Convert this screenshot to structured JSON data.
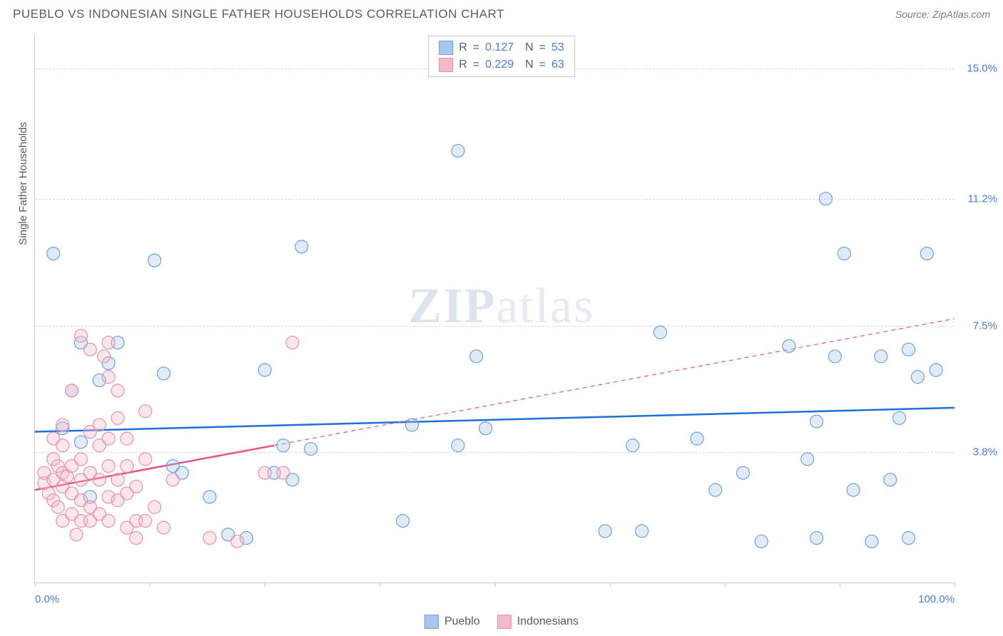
{
  "title": "PUEBLO VS INDONESIAN SINGLE FATHER HOUSEHOLDS CORRELATION CHART",
  "source_label": "Source: ZipAtlas.com",
  "watermark_zip": "ZIP",
  "watermark_atlas": "atlas",
  "y_axis_title": "Single Father Households",
  "x_min_label": "0.0%",
  "x_max_label": "100.0%",
  "stats": {
    "r_label": "R",
    "n_label": "N",
    "eq": "=",
    "series1": {
      "r": "0.127",
      "n": "53"
    },
    "series2": {
      "r": "0.229",
      "n": "63"
    }
  },
  "legend": {
    "series1_name": "Pueblo",
    "series2_name": "Indonesians"
  },
  "chart": {
    "type": "scatter",
    "xlim": [
      0,
      100
    ],
    "ylim": [
      0,
      16
    ],
    "y_gridlines": [
      {
        "value": 15.0,
        "label": "15.0%"
      },
      {
        "value": 11.2,
        "label": "11.2%"
      },
      {
        "value": 7.5,
        "label": "7.5%"
      },
      {
        "value": 3.8,
        "label": "3.8%"
      }
    ],
    "x_ticks": [
      0,
      12.5,
      25,
      37.5,
      50,
      62.5,
      75,
      87.5,
      100
    ],
    "marker_radius": 9,
    "marker_stroke_width": 1.2,
    "marker_fill_opacity": 0.35,
    "series": [
      {
        "name": "Pueblo",
        "color_fill": "#a9c6ec",
        "color_stroke": "#6fa0dd",
        "trend_color": "#1e6fd9",
        "trend_width": 2.5,
        "trend_dash": "",
        "trend": {
          "x1": 0,
          "y1": 4.4,
          "x2": 100,
          "y2": 5.1
        },
        "points": [
          [
            2,
            9.6
          ],
          [
            3,
            4.5
          ],
          [
            4,
            5.6
          ],
          [
            5,
            4.1
          ],
          [
            5,
            7.0
          ],
          [
            6,
            2.5
          ],
          [
            7,
            5.9
          ],
          [
            8,
            6.4
          ],
          [
            9,
            7.0
          ],
          [
            13,
            9.4
          ],
          [
            14,
            6.1
          ],
          [
            15,
            3.4
          ],
          [
            16,
            3.2
          ],
          [
            19,
            2.5
          ],
          [
            21,
            1.4
          ],
          [
            23,
            1.3
          ],
          [
            25,
            6.2
          ],
          [
            26,
            3.2
          ],
          [
            27,
            4.0
          ],
          [
            28,
            3.0
          ],
          [
            29,
            9.8
          ],
          [
            30,
            3.9
          ],
          [
            40,
            1.8
          ],
          [
            41,
            4.6
          ],
          [
            46,
            4.0
          ],
          [
            46,
            12.6
          ],
          [
            48,
            6.6
          ],
          [
            49,
            4.5
          ],
          [
            62,
            1.5
          ],
          [
            65,
            4.0
          ],
          [
            66,
            1.5
          ],
          [
            68,
            7.3
          ],
          [
            72,
            4.2
          ],
          [
            74,
            2.7
          ],
          [
            77,
            3.2
          ],
          [
            82,
            6.9
          ],
          [
            84,
            3.6
          ],
          [
            85,
            1.3
          ],
          [
            85,
            4.7
          ],
          [
            86,
            11.2
          ],
          [
            87,
            6.6
          ],
          [
            88,
            9.6
          ],
          [
            89,
            2.7
          ],
          [
            91,
            1.2
          ],
          [
            92,
            6.6
          ],
          [
            93,
            3.0
          ],
          [
            94,
            4.8
          ],
          [
            95,
            6.8
          ],
          [
            96,
            6.0
          ],
          [
            97,
            9.6
          ],
          [
            98,
            6.2
          ],
          [
            95,
            1.3
          ],
          [
            79,
            1.2
          ]
        ]
      },
      {
        "name": "Indonesians",
        "color_fill": "#f3b9c7",
        "color_stroke": "#e892a8",
        "trend_color": "#e3567f",
        "trend_width": 2.5,
        "trend_solid_until_x": 26,
        "trend_dash": "6 5",
        "trend": {
          "x1": 0,
          "y1": 2.7,
          "x2": 100,
          "y2": 7.7
        },
        "points": [
          [
            1,
            2.9
          ],
          [
            1,
            3.2
          ],
          [
            1.5,
            2.6
          ],
          [
            2,
            2.4
          ],
          [
            2,
            3.0
          ],
          [
            2,
            3.6
          ],
          [
            2,
            4.2
          ],
          [
            2.5,
            2.2
          ],
          [
            2.5,
            3.4
          ],
          [
            3,
            1.8
          ],
          [
            3,
            2.8
          ],
          [
            3,
            3.2
          ],
          [
            3,
            4.0
          ],
          [
            3,
            4.6
          ],
          [
            3.5,
            3.1
          ],
          [
            4,
            2.0
          ],
          [
            4,
            2.6
          ],
          [
            4,
            3.4
          ],
          [
            4,
            5.6
          ],
          [
            4.5,
            1.4
          ],
          [
            5,
            1.8
          ],
          [
            5,
            2.4
          ],
          [
            5,
            3.0
          ],
          [
            5,
            3.6
          ],
          [
            5,
            7.2
          ],
          [
            6,
            1.8
          ],
          [
            6,
            2.2
          ],
          [
            6,
            3.2
          ],
          [
            6,
            4.4
          ],
          [
            6,
            6.8
          ],
          [
            7,
            2.0
          ],
          [
            7,
            3.0
          ],
          [
            7,
            4.0
          ],
          [
            7,
            4.6
          ],
          [
            7.5,
            6.6
          ],
          [
            8,
            1.8
          ],
          [
            8,
            2.5
          ],
          [
            8,
            3.4
          ],
          [
            8,
            4.2
          ],
          [
            8,
            7.0
          ],
          [
            8,
            6.0
          ],
          [
            9,
            2.4
          ],
          [
            9,
            3.0
          ],
          [
            9,
            4.8
          ],
          [
            9,
            5.6
          ],
          [
            10,
            1.6
          ],
          [
            10,
            2.6
          ],
          [
            10,
            3.4
          ],
          [
            10,
            4.2
          ],
          [
            11,
            1.3
          ],
          [
            11,
            1.8
          ],
          [
            11,
            2.8
          ],
          [
            12,
            1.8
          ],
          [
            12,
            3.6
          ],
          [
            12,
            5.0
          ],
          [
            13,
            2.2
          ],
          [
            14,
            1.6
          ],
          [
            15,
            3.0
          ],
          [
            19,
            1.3
          ],
          [
            22,
            1.2
          ],
          [
            25,
            3.2
          ],
          [
            27,
            3.2
          ],
          [
            28,
            7.0
          ]
        ]
      }
    ]
  },
  "colors": {
    "title_text": "#5a5a5a",
    "source_text": "#7a7a7a",
    "axis_line": "#c8c8c8",
    "grid_dash": "#d8d8d8",
    "tick_label": "#4b7bd6",
    "background": "#ffffff"
  }
}
